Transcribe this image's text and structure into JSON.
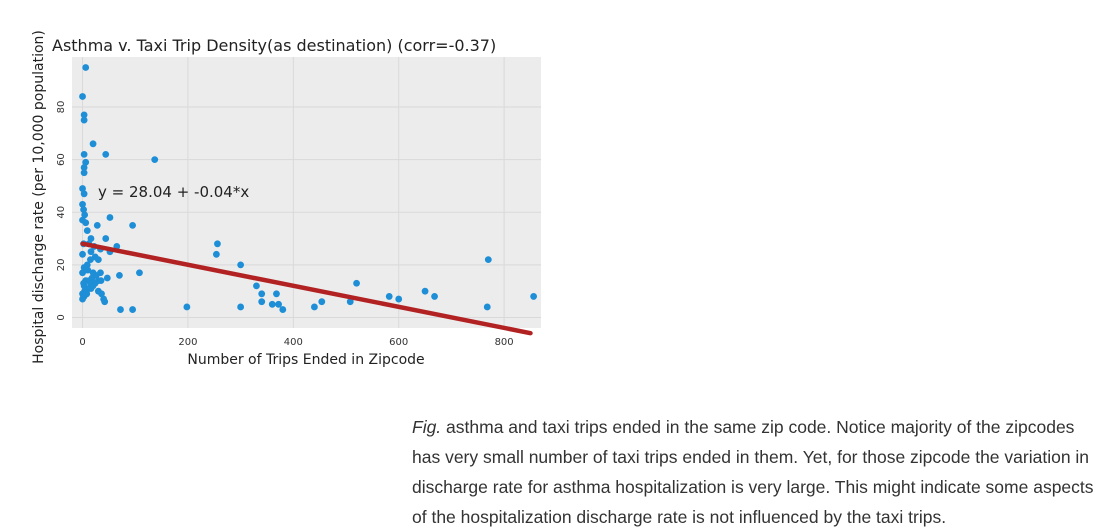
{
  "chart_data": {
    "type": "scatter",
    "title": "Asthma v. Taxi Trip Density(as destination) (corr=-0.37)",
    "xlabel": "Number of Trips Ended in Zipcode",
    "ylabel": "Hospital discharge rate (per 10,000 population)",
    "xlim": [
      -20,
      870
    ],
    "ylim": [
      -4,
      99
    ],
    "xticks": [
      0,
      200,
      400,
      600,
      800
    ],
    "yticks": [
      0,
      20,
      40,
      60,
      80
    ],
    "grid": true,
    "regression": {
      "label": "y = 28.04 + -0.04*x",
      "intercept": 28.04,
      "slope": -0.04
    },
    "colors": {
      "points": "#1e8fd6",
      "line": "#b22222",
      "plot_bg": "#ececec",
      "grid": "#d9d9d9"
    },
    "points": [
      [
        6,
        95
      ],
      [
        0,
        84
      ],
      [
        3,
        77
      ],
      [
        3,
        75
      ],
      [
        20,
        66
      ],
      [
        3,
        62
      ],
      [
        44,
        62
      ],
      [
        137,
        60
      ],
      [
        6,
        59
      ],
      [
        3,
        57
      ],
      [
        3,
        55
      ],
      [
        0,
        49
      ],
      [
        3,
        47
      ],
      [
        0,
        43
      ],
      [
        2,
        41
      ],
      [
        4,
        39
      ],
      [
        0,
        37
      ],
      [
        52,
        38
      ],
      [
        6,
        36
      ],
      [
        28,
        35
      ],
      [
        95,
        35
      ],
      [
        9,
        33
      ],
      [
        44,
        30
      ],
      [
        16,
        30
      ],
      [
        2,
        28
      ],
      [
        12,
        28
      ],
      [
        22,
        27
      ],
      [
        65,
        27
      ],
      [
        34,
        26
      ],
      [
        16,
        25
      ],
      [
        52,
        25
      ],
      [
        256,
        28
      ],
      [
        254,
        24
      ],
      [
        0,
        24
      ],
      [
        24,
        23
      ],
      [
        15,
        22
      ],
      [
        30,
        22
      ],
      [
        9,
        20
      ],
      [
        3,
        19
      ],
      [
        5,
        18
      ],
      [
        10,
        18
      ],
      [
        0,
        17
      ],
      [
        20,
        17
      ],
      [
        26,
        16
      ],
      [
        34,
        17
      ],
      [
        70,
        16
      ],
      [
        108,
        17
      ],
      [
        18,
        15
      ],
      [
        47,
        15
      ],
      [
        6,
        14
      ],
      [
        12,
        14
      ],
      [
        30,
        14
      ],
      [
        35,
        14
      ],
      [
        2,
        13
      ],
      [
        15,
        13
      ],
      [
        24,
        13
      ],
      [
        3,
        12
      ],
      [
        20,
        12
      ],
      [
        12,
        11
      ],
      [
        16,
        11
      ],
      [
        4,
        10
      ],
      [
        30,
        10
      ],
      [
        0,
        9
      ],
      [
        8,
        9
      ],
      [
        36,
        9
      ],
      [
        3,
        8
      ],
      [
        40,
        7
      ],
      [
        0,
        7
      ],
      [
        42,
        6
      ],
      [
        72,
        3
      ],
      [
        95,
        3
      ],
      [
        198,
        4
      ],
      [
        300,
        20
      ],
      [
        330,
        12
      ],
      [
        340,
        9
      ],
      [
        340,
        6
      ],
      [
        368,
        9
      ],
      [
        300,
        4
      ],
      [
        360,
        5
      ],
      [
        372,
        5
      ],
      [
        380,
        3
      ],
      [
        440,
        4
      ],
      [
        454,
        6
      ],
      [
        508,
        6
      ],
      [
        520,
        13
      ],
      [
        582,
        8
      ],
      [
        600,
        7
      ],
      [
        650,
        10
      ],
      [
        668,
        8
      ],
      [
        770,
        22
      ],
      [
        768,
        4
      ],
      [
        856,
        8
      ]
    ]
  },
  "caption": {
    "fig_label": "Fig.",
    "text": " asthma and taxi trips ended in the same zip code. Notice majority of the zipcodes has very small number of taxi trips ended in them. Yet, for those zipcode the variation in discharge rate for asthma hospitalization is very large. This might indicate some aspects of the hospitalization discharge rate is not influenced by the taxi trips."
  }
}
